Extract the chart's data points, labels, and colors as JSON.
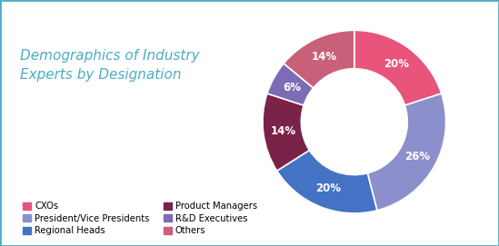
{
  "title": "Demographics of Industry\nExperts by Designation",
  "title_color": "#4BACC6",
  "slices": [
    {
      "label": "CXOs",
      "value": 20,
      "color": "#E8547A",
      "pct": "20%"
    },
    {
      "label": "President/Vice Presidents",
      "value": 26,
      "color": "#8B8FCC",
      "pct": "26%"
    },
    {
      "label": "Regional Heads",
      "value": 20,
      "color": "#4472C4",
      "pct": "20%"
    },
    {
      "label": "Product Managers",
      "value": 14,
      "color": "#7B2248",
      "pct": "14%"
    },
    {
      "label": "R&D Executives",
      "value": 6,
      "color": "#7E6BB5",
      "pct": "6%"
    },
    {
      "label": "Others",
      "value": 14,
      "color": "#C9607A",
      "pct": "14%"
    }
  ],
  "start_angle": 90,
  "background_color": "#FFFFFF",
  "border_color": "#4BACC6",
  "pct_font_size": 8.5,
  "pct_color": "white",
  "title_fontsize": 11,
  "legend_col1": [
    0,
    2,
    4
  ],
  "legend_col2": [
    1,
    3,
    5
  ]
}
